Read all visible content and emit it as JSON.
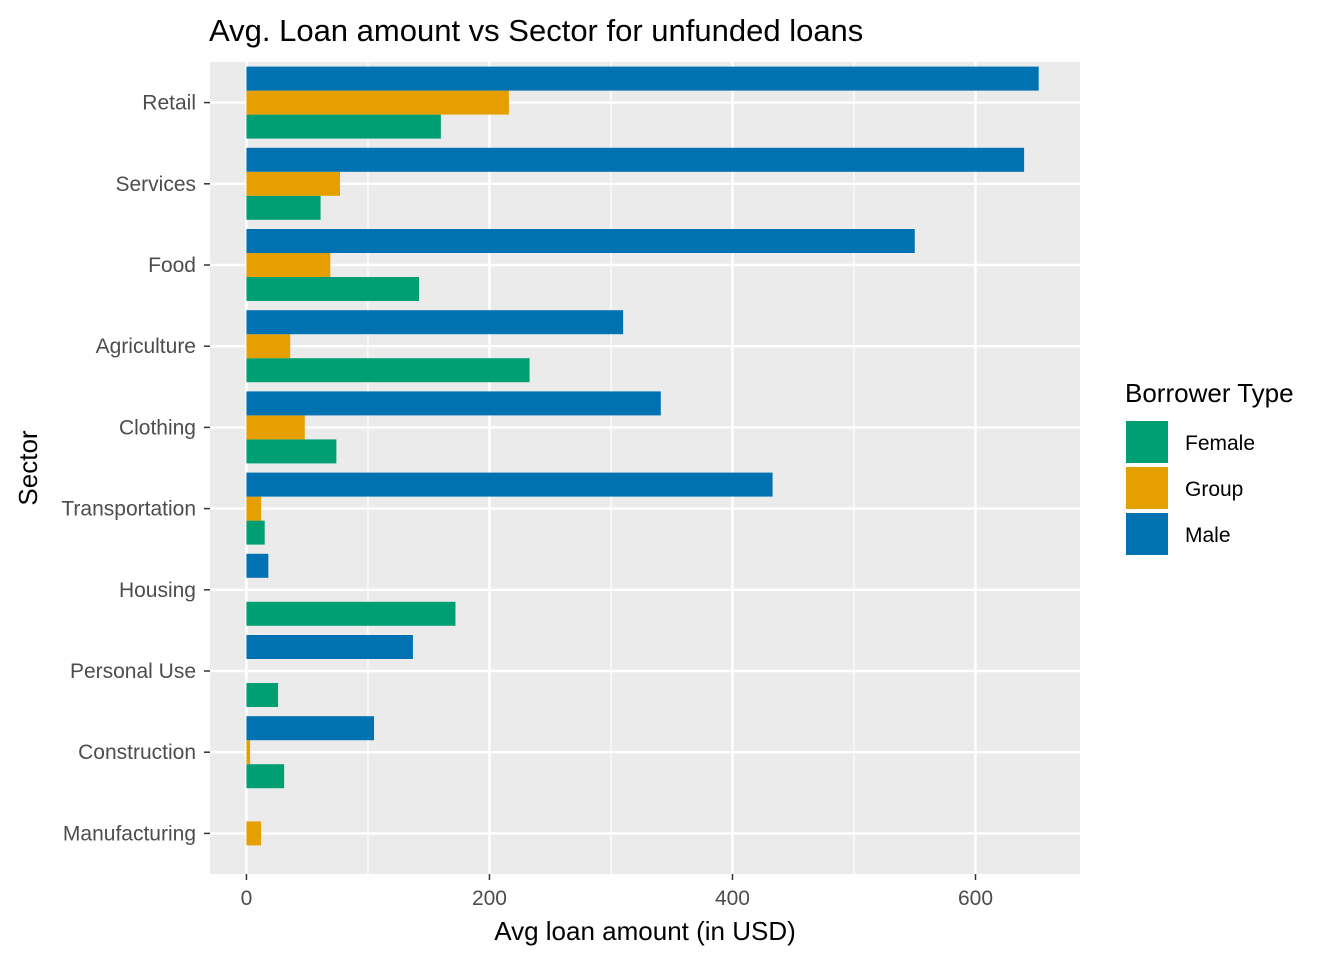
{
  "chart_data": {
    "type": "bar",
    "orientation": "horizontal",
    "title": "Avg. Loan amount vs Sector for unfunded loans",
    "xlabel": "Avg loan amount (in USD)",
    "ylabel": "Sector",
    "xlim": [
      -30,
      686
    ],
    "xticks": [
      0,
      200,
      400,
      600
    ],
    "grid": true,
    "legend_placement": "right",
    "legend_title": "Borrower Type",
    "categories": [
      "Retail",
      "Services",
      "Food",
      "Agriculture",
      "Clothing",
      "Transportation",
      "Housing",
      "Personal Use",
      "Construction",
      "Manufacturing"
    ],
    "series": [
      {
        "name": "Female",
        "color": "#009E73",
        "values": [
          160,
          61,
          142,
          233,
          74,
          15,
          172,
          26,
          31,
          null
        ]
      },
      {
        "name": "Group",
        "color": "#E69F00",
        "values": [
          216,
          77,
          69,
          36,
          48,
          12,
          null,
          null,
          3,
          12
        ]
      },
      {
        "name": "Male",
        "color": "#0072B2",
        "values": [
          652,
          640,
          550,
          310,
          341,
          433,
          18,
          137,
          105,
          null
        ]
      }
    ]
  }
}
